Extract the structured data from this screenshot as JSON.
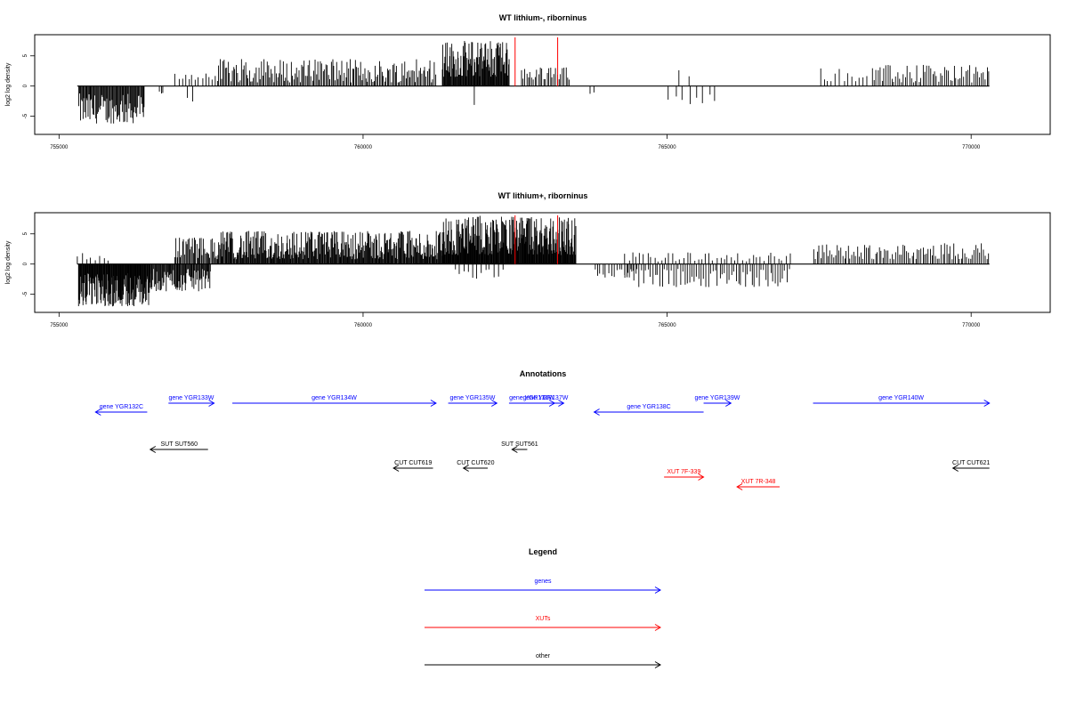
{
  "colors": {
    "genes": "#0000ff",
    "XUTs": "#ff0000",
    "other": "#000000",
    "marker": "#ff0000"
  },
  "chart_data": [
    {
      "type": "bar",
      "title": "WT lithium-, riborninus",
      "ylabel": "log2 log density",
      "xlim": [
        754600,
        771300
      ],
      "ylim": [
        -8,
        8.5
      ],
      "x_ticks": [
        755000,
        760000,
        765000,
        770000
      ],
      "x_tick_labels": [
        "755000",
        "760000",
        "765000",
        "770000"
      ],
      "y_ticks": [
        -5,
        0,
        5
      ],
      "y_tick_labels": [
        "-5",
        "0",
        "5"
      ],
      "baseline": [
        755300,
        770300
      ],
      "vertical_markers": [
        762500,
        763200
      ],
      "regions": [
        {
          "start": 755320,
          "end": 756400,
          "min": -6.2,
          "max": -1.2,
          "step": 14
        },
        {
          "start": 756650,
          "end": 756700,
          "min": -1.8,
          "max": -0.8,
          "step": 25
        },
        {
          "start": 756900,
          "end": 757600,
          "min": 1.0,
          "max": 2.2,
          "step": 55
        },
        {
          "start": 757600,
          "end": 761200,
          "min": 0.6,
          "max": 4.5,
          "step": 22
        },
        {
          "start": 757100,
          "end": 757200,
          "min": -2.6,
          "max": -1.0,
          "step": 90
        },
        {
          "start": 761300,
          "end": 762400,
          "min": 1.5,
          "max": 7.5,
          "step": 11
        },
        {
          "start": 761800,
          "end": 761850,
          "min": -3.2,
          "max": -3.0,
          "step": 60
        },
        {
          "start": 762600,
          "end": 763400,
          "min": 1.0,
          "max": 3.2,
          "step": 28
        },
        {
          "start": 763700,
          "end": 763800,
          "min": -1.8,
          "max": -1.0,
          "step": 80
        },
        {
          "start": 765000,
          "end": 765850,
          "min": -3.0,
          "max": -1.2,
          "step": 110
        },
        {
          "start": 765100,
          "end": 765400,
          "min": 1.5,
          "max": 2.8,
          "step": 240
        },
        {
          "start": 767500,
          "end": 768400,
          "min": 0.8,
          "max": 3.0,
          "step": 65
        },
        {
          "start": 768400,
          "end": 770300,
          "min": 0.5,
          "max": 3.5,
          "step": 32
        }
      ]
    },
    {
      "type": "bar",
      "title": "WT lithium+, riborninus",
      "ylabel": "log2 log density",
      "xlim": [
        754600,
        771300
      ],
      "ylim": [
        -8,
        8.5
      ],
      "x_ticks": [
        755000,
        760000,
        765000,
        770000
      ],
      "x_tick_labels": [
        "755000",
        "760000",
        "765000",
        "770000"
      ],
      "y_ticks": [
        -5,
        0,
        5
      ],
      "y_tick_labels": [
        "-5",
        "0",
        "5"
      ],
      "baseline": [
        755300,
        770300
      ],
      "vertical_markers": [
        762500,
        763200
      ],
      "regions": [
        {
          "start": 755320,
          "end": 756500,
          "min": -7.0,
          "max": -1.5,
          "step": 9
        },
        {
          "start": 755300,
          "end": 755800,
          "min": 0.5,
          "max": 2.5,
          "step": 70
        },
        {
          "start": 756500,
          "end": 757500,
          "min": -4.5,
          "max": -0.8,
          "step": 13
        },
        {
          "start": 756900,
          "end": 757600,
          "min": 1.0,
          "max": 4.5,
          "step": 18
        },
        {
          "start": 757600,
          "end": 761300,
          "min": 0.8,
          "max": 5.5,
          "step": 12
        },
        {
          "start": 761300,
          "end": 763500,
          "min": 1.5,
          "max": 8.0,
          "step": 9
        },
        {
          "start": 761500,
          "end": 762300,
          "min": -2.5,
          "max": -0.8,
          "step": 70
        },
        {
          "start": 763800,
          "end": 764500,
          "min": -2.5,
          "max": -0.8,
          "step": 45
        },
        {
          "start": 764300,
          "end": 767000,
          "min": 0.4,
          "max": 2.0,
          "step": 60
        },
        {
          "start": 764300,
          "end": 767000,
          "min": -3.8,
          "max": -0.8,
          "step": 38
        },
        {
          "start": 767400,
          "end": 770300,
          "min": 0.8,
          "max": 3.5,
          "step": 30
        }
      ]
    }
  ],
  "annotations": {
    "title": "Annotations",
    "xlim": [
      754600,
      771300
    ],
    "items": [
      {
        "label": "gene YGR132C",
        "start": 755600,
        "end": 756450,
        "strand": "-",
        "cls": "genes",
        "row": 1
      },
      {
        "label": "gene YGR133W",
        "start": 756800,
        "end": 757550,
        "strand": "+",
        "cls": "genes",
        "row": 0
      },
      {
        "label": "gene YGR134W",
        "start": 757850,
        "end": 761200,
        "strand": "+",
        "cls": "genes",
        "row": 0
      },
      {
        "label": "gene YGR135W",
        "start": 761400,
        "end": 762200,
        "strand": "+",
        "cls": "genes",
        "row": 0
      },
      {
        "label": "gene YGR136W",
        "start": 762400,
        "end": 763150,
        "strand": "+",
        "cls": "genes",
        "row": 0
      },
      {
        "label": "gene YGR137W",
        "start": 762700,
        "end": 763300,
        "strand": "+",
        "cls": "genes",
        "row": 0
      },
      {
        "label": "gene YGR138C",
        "start": 763800,
        "end": 765600,
        "strand": "-",
        "cls": "genes",
        "row": 1
      },
      {
        "label": "gene YGR139W",
        "start": 765600,
        "end": 766050,
        "strand": "+",
        "cls": "genes",
        "row": 0
      },
      {
        "label": "gene YGR140W",
        "start": 767400,
        "end": 770300,
        "strand": "+",
        "cls": "genes",
        "row": 0
      },
      {
        "label": "SUT SUT560",
        "start": 756500,
        "end": 757450,
        "strand": "-",
        "cls": "other",
        "row": 2
      },
      {
        "label": "SUT SUT561",
        "start": 762450,
        "end": 762700,
        "strand": "-",
        "cls": "other",
        "row": 2
      },
      {
        "label": "CUT CUT619",
        "start": 760500,
        "end": 761150,
        "strand": "-",
        "cls": "other",
        "row": 3
      },
      {
        "label": "CUT CUT620",
        "start": 761650,
        "end": 762050,
        "strand": "-",
        "cls": "other",
        "row": 3
      },
      {
        "label": "CUT CUT621",
        "start": 769700,
        "end": 770300,
        "strand": "-",
        "cls": "other",
        "row": 3
      },
      {
        "label": "XUT 7F-339",
        "start": 764950,
        "end": 765600,
        "strand": "+",
        "cls": "XUTs",
        "row": 4
      },
      {
        "label": "XUT 7R-348",
        "start": 766150,
        "end": 766850,
        "strand": "-",
        "cls": "XUTs",
        "row": 5
      }
    ]
  },
  "legend": {
    "title": "Legend",
    "entries": [
      {
        "label": "genes",
        "cls": "genes"
      },
      {
        "label": "XUTs",
        "cls": "XUTs"
      },
      {
        "label": "other",
        "cls": "other"
      }
    ]
  }
}
